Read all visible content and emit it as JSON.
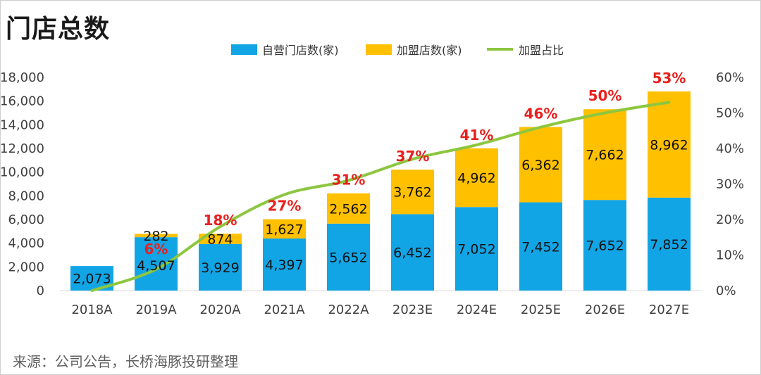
{
  "title": "门店总数",
  "source": "来源：公司公告，长桥海豚投研整理",
  "colors": {
    "self_operated": "#12a5e6",
    "franchise": "#ffc000",
    "ratio_line": "#8dc63f",
    "pct_label": "#e8201e"
  },
  "chart_data": {
    "type": "bar",
    "stacked": true,
    "categories": [
      "2018A",
      "2019A",
      "2020A",
      "2021A",
      "2022A",
      "2023E",
      "2024E",
      "2025E",
      "2026E",
      "2027E"
    ],
    "series": [
      {
        "name": "自营门店数(家)",
        "values": [
          2073,
          4507,
          3929,
          4397,
          5652,
          6452,
          7052,
          7452,
          7652,
          7852
        ],
        "axis": "left"
      },
      {
        "name": "加盟店数(家)",
        "values": [
          0,
          282,
          874,
          1627,
          2562,
          3762,
          4962,
          6362,
          7662,
          8962
        ],
        "axis": "left"
      },
      {
        "name": "加盟占比",
        "type": "line",
        "axis": "right",
        "values": [
          0,
          6,
          18,
          27,
          31,
          37,
          41,
          46,
          50,
          53
        ]
      }
    ],
    "franchise_labels": [
      "",
      "282",
      "874",
      "1,627",
      "2,562",
      "3,762",
      "4,962",
      "6,362",
      "7,662",
      "8,962"
    ],
    "self_labels": [
      "2,073",
      "4,507",
      "3,929",
      "4,397",
      "5,652",
      "6,452",
      "7,052",
      "7,452",
      "7,652",
      "7,852"
    ],
    "pct_labels": [
      "",
      "6%",
      "18%",
      "27%",
      "31%",
      "37%",
      "41%",
      "46%",
      "50%",
      "53%"
    ],
    "y_left": {
      "min": 0,
      "max": 18000,
      "ticks": [
        "0",
        "2,000",
        "4,000",
        "6,000",
        "8,000",
        "10,000",
        "12,000",
        "14,000",
        "16,000",
        "18,000"
      ]
    },
    "y_right": {
      "min": 0,
      "max": 60,
      "ticks": [
        "0%",
        "10%",
        "20%",
        "30%",
        "40%",
        "50%",
        "60%"
      ]
    },
    "legend_position": "top"
  }
}
